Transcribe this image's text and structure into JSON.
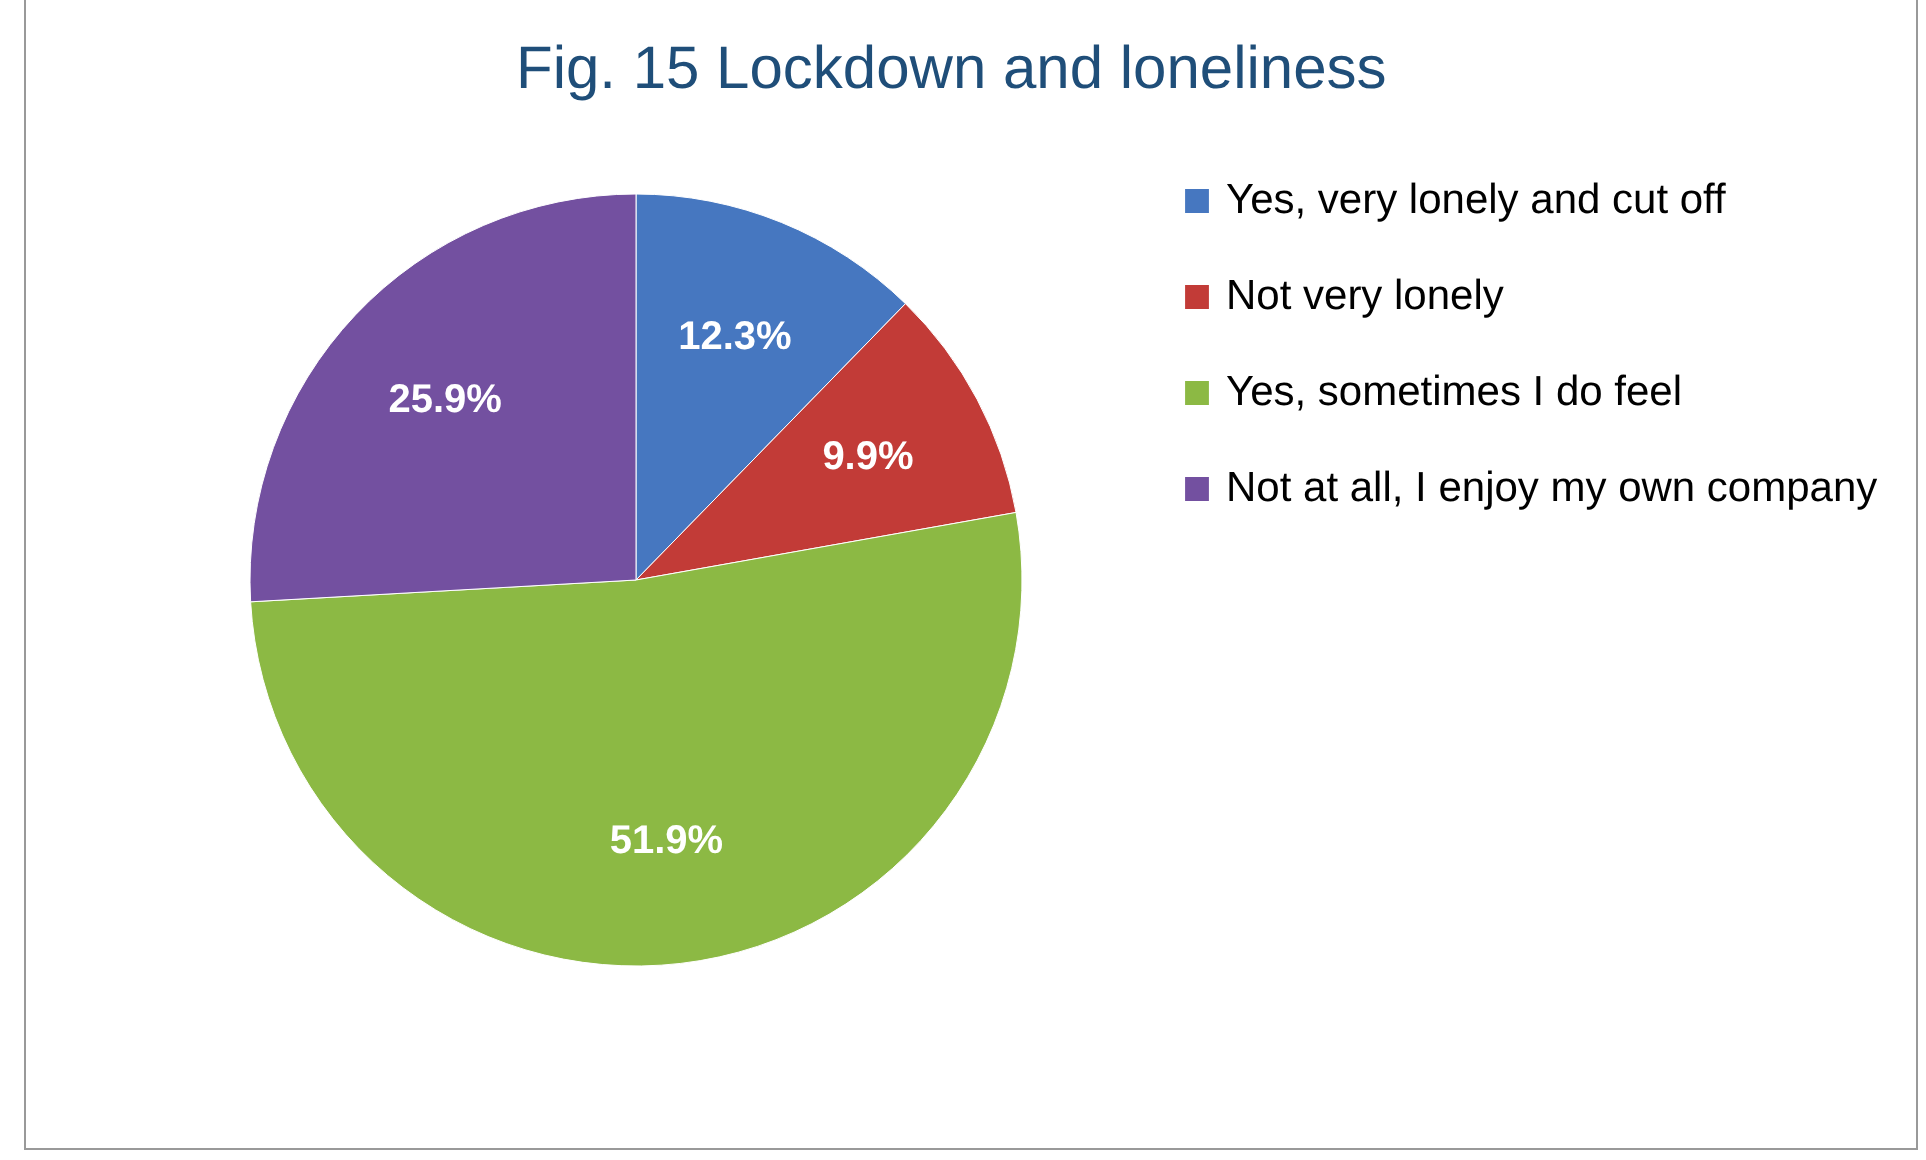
{
  "chart_data": {
    "type": "pie",
    "title": "Fig. 15 Lockdown and loneliness",
    "categories": [
      "Yes, very lonely and cut off",
      "Not very lonely",
      "Yes, sometimes I do feel",
      "Not at all, I enjoy my own company"
    ],
    "values": [
      12.3,
      9.9,
      51.9,
      25.9
    ],
    "colors": [
      "#4677c0",
      "#c23b37",
      "#8cb944",
      "#7350a0"
    ],
    "value_labels": [
      "12.3%",
      "9.9%",
      "51.9%",
      "25.9%"
    ],
    "legend": "right"
  }
}
